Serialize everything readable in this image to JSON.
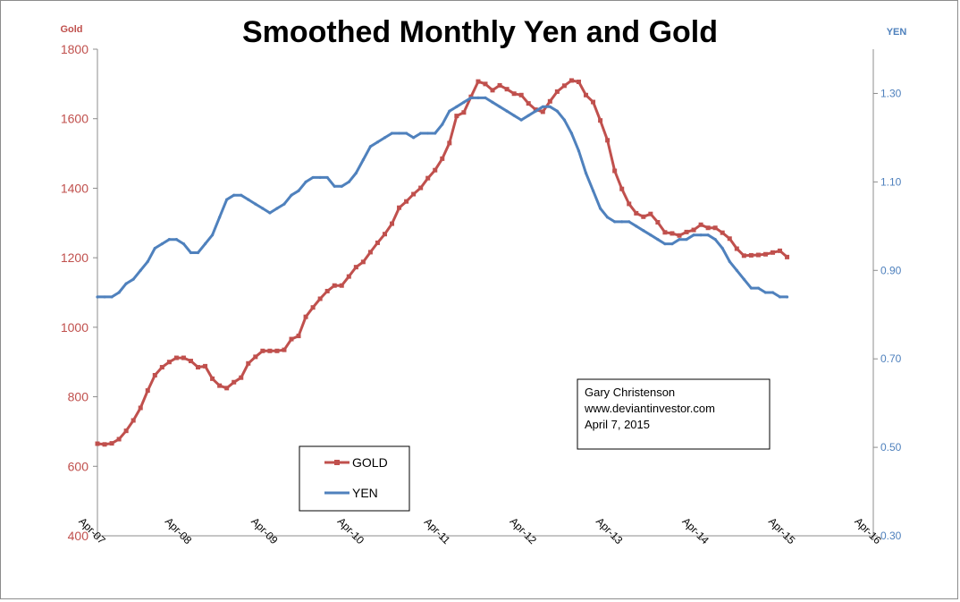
{
  "chart_data": {
    "type": "line",
    "title": "Smoothed Monthly Yen and Gold",
    "y_left_label": "Gold",
    "y_right_label": "YEN",
    "y_left_lim": [
      400,
      1800
    ],
    "y_left_ticks": [
      "400",
      "600",
      "800",
      "1000",
      "1200",
      "1400",
      "1600",
      "1800"
    ],
    "y_right_lim": [
      0.3,
      1.4
    ],
    "y_right_ticks": [
      "0.30",
      "0.50",
      "0.70",
      "0.90",
      "1.10",
      "1.30"
    ],
    "x_lim_months": [
      0,
      108
    ],
    "x_ticks": [
      "Apr-07",
      "Apr-08",
      "Apr-09",
      "Apr-10",
      "Apr-11",
      "Apr-12",
      "Apr-13",
      "Apr-14",
      "Apr-15",
      "Apr-16"
    ],
    "legend": [
      "GOLD",
      "YEN"
    ],
    "annotation": [
      "Gary Christenson",
      "www.deviantinvestor.com",
      "April 7, 2015"
    ],
    "series": [
      {
        "name": "GOLD",
        "color": "#c0504d",
        "axis": "left",
        "x": [
          0,
          1,
          2,
          3,
          4,
          5,
          6,
          7,
          8,
          9,
          10,
          11,
          12,
          13,
          14,
          15,
          16,
          17,
          18,
          19,
          20,
          21,
          22,
          23,
          24,
          25,
          26,
          27,
          28,
          29,
          30,
          31,
          32,
          33,
          34,
          35,
          36,
          37,
          38,
          39,
          40,
          41,
          42,
          43,
          44,
          45,
          46,
          47,
          48,
          49,
          50,
          51,
          52,
          53,
          54,
          55,
          56,
          57,
          58,
          59,
          60,
          61,
          62,
          63,
          64,
          65,
          66,
          67,
          68,
          69,
          70,
          71,
          72,
          73,
          74,
          75,
          76,
          77,
          78,
          79,
          80,
          81,
          82,
          83,
          84,
          85,
          86,
          87,
          88,
          89,
          90,
          91,
          92,
          93,
          94,
          95,
          96
        ],
        "values": [
          665,
          663,
          666,
          678,
          702,
          732,
          768,
          818,
          862,
          885,
          900,
          912,
          912,
          903,
          885,
          888,
          852,
          832,
          825,
          842,
          855,
          896,
          915,
          932,
          932,
          932,
          935,
          966,
          975,
          1030,
          1057,
          1082,
          1104,
          1120,
          1120,
          1146,
          1173,
          1188,
          1216,
          1243,
          1268,
          1298,
          1344,
          1362,
          1383,
          1401,
          1429,
          1452,
          1485,
          1530,
          1608,
          1618,
          1663,
          1707,
          1700,
          1682,
          1696,
          1685,
          1672,
          1668,
          1644,
          1626,
          1620,
          1650,
          1678,
          1695,
          1710,
          1706,
          1668,
          1648,
          1595,
          1538,
          1450,
          1398,
          1355,
          1328,
          1318,
          1326,
          1302,
          1273,
          1270,
          1264,
          1274,
          1280,
          1295,
          1286,
          1286,
          1272,
          1255,
          1226,
          1206,
          1207,
          1208,
          1210,
          1215,
          1220,
          1202
        ]
      },
      {
        "name": "YEN",
        "color": "#4f81bd",
        "axis": "right",
        "x": [
          0,
          1,
          2,
          3,
          4,
          5,
          6,
          7,
          8,
          9,
          10,
          11,
          12,
          13,
          14,
          15,
          16,
          17,
          18,
          19,
          20,
          21,
          22,
          23,
          24,
          25,
          26,
          27,
          28,
          29,
          30,
          31,
          32,
          33,
          34,
          35,
          36,
          37,
          38,
          39,
          40,
          41,
          42,
          43,
          44,
          45,
          46,
          47,
          48,
          49,
          50,
          51,
          52,
          53,
          54,
          55,
          56,
          57,
          58,
          59,
          60,
          61,
          62,
          63,
          64,
          65,
          66,
          67,
          68,
          69,
          70,
          71,
          72,
          73,
          74,
          75,
          76,
          77,
          78,
          79,
          80,
          81,
          82,
          83,
          84,
          85,
          86,
          87,
          88,
          89,
          90,
          91,
          92,
          93,
          94,
          95,
          96
        ],
        "values": [
          0.84,
          0.84,
          0.84,
          0.85,
          0.87,
          0.88,
          0.9,
          0.92,
          0.95,
          0.96,
          0.97,
          0.97,
          0.96,
          0.94,
          0.94,
          0.96,
          0.98,
          1.02,
          1.06,
          1.07,
          1.07,
          1.06,
          1.05,
          1.04,
          1.03,
          1.04,
          1.05,
          1.07,
          1.08,
          1.1,
          1.11,
          1.11,
          1.11,
          1.09,
          1.09,
          1.1,
          1.12,
          1.15,
          1.18,
          1.19,
          1.2,
          1.21,
          1.21,
          1.21,
          1.2,
          1.21,
          1.21,
          1.21,
          1.23,
          1.26,
          1.27,
          1.28,
          1.29,
          1.29,
          1.29,
          1.28,
          1.27,
          1.26,
          1.25,
          1.24,
          1.25,
          1.26,
          1.27,
          1.27,
          1.26,
          1.24,
          1.21,
          1.17,
          1.12,
          1.08,
          1.04,
          1.02,
          1.01,
          1.01,
          1.01,
          1.0,
          0.99,
          0.98,
          0.97,
          0.96,
          0.96,
          0.97,
          0.97,
          0.98,
          0.98,
          0.98,
          0.97,
          0.95,
          0.92,
          0.9,
          0.88,
          0.86,
          0.86,
          0.85,
          0.85,
          0.84,
          0.84
        ]
      }
    ]
  }
}
